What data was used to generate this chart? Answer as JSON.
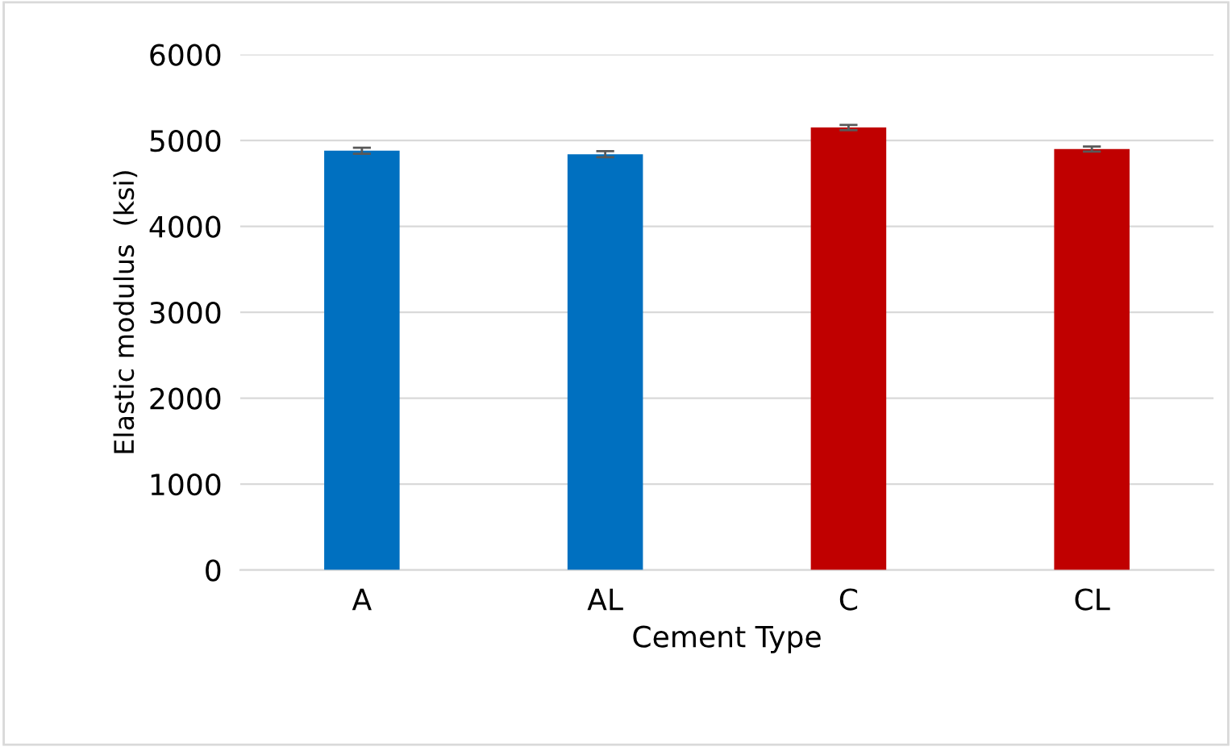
{
  "chart_data": {
    "type": "bar",
    "ylabel": "Elastic modulus  (ksi)",
    "xlabel": "Cement Type",
    "categories": [
      "A",
      "AL",
      "C",
      "CL"
    ],
    "values": [
      4880,
      4840,
      5150,
      4900
    ],
    "colors": [
      "#0070c0",
      "#0070c0",
      "#c00000",
      "#c00000"
    ],
    "errors": [
      35,
      35,
      30,
      30
    ],
    "ylim": [
      0,
      6000
    ],
    "yticks": [
      0,
      1000,
      2000,
      3000,
      4000,
      5000,
      6000
    ],
    "grid": "y",
    "legend": false
  }
}
